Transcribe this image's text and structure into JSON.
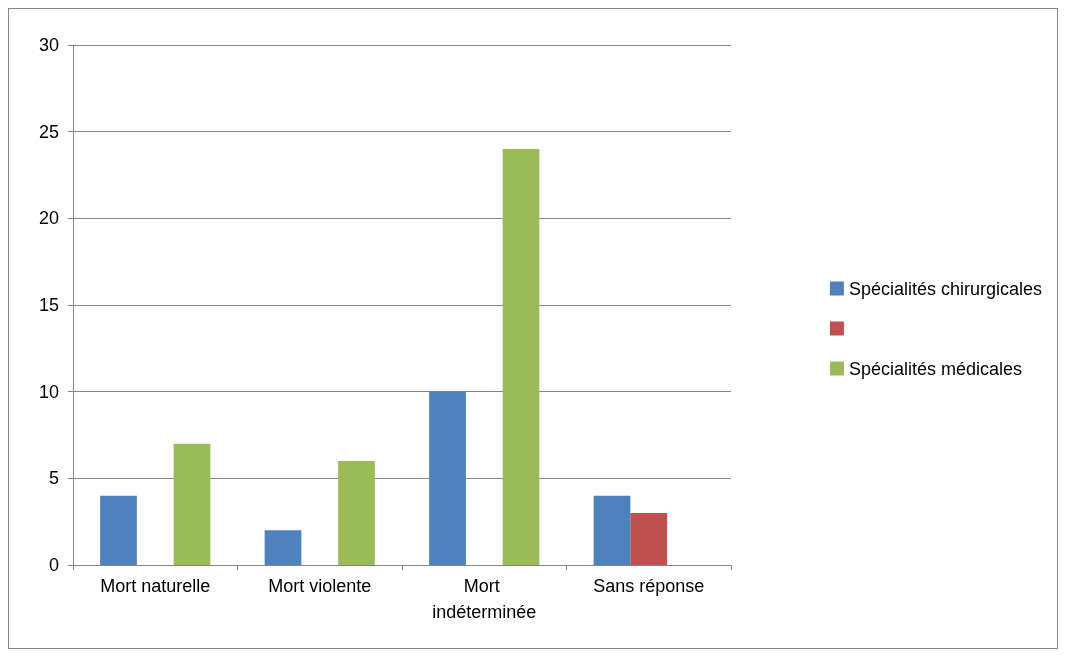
{
  "chart_data": {
    "type": "bar",
    "categories": [
      "Mort naturelle",
      "Mort violente",
      "Mort indéterminée",
      "Sans réponse"
    ],
    "series": [
      {
        "name": "Spécialités chirurgicales",
        "color": "#4f81bd",
        "values": [
          4,
          2,
          10,
          4
        ]
      },
      {
        "color": "#c0504d",
        "values": [
          null,
          null,
          null,
          3
        ]
      },
      {
        "name": "Spécialités médicales",
        "color": "#9bbb59",
        "values": [
          7,
          6,
          24,
          null
        ]
      }
    ],
    "ylim": [
      0,
      30
    ],
    "yticks": [
      0,
      5,
      10,
      15,
      20,
      25,
      30
    ],
    "grid": "y",
    "legend": "right"
  }
}
